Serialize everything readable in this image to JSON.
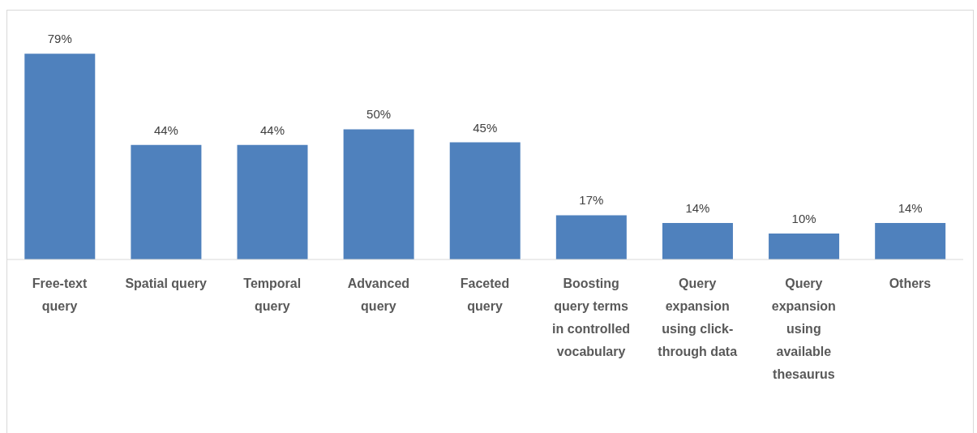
{
  "chart_data": {
    "type": "bar",
    "categories": [
      "Free-text query",
      "Spatial query",
      "Temporal query",
      "Advanced query",
      "Faceted query",
      "Boosting query terms in controlled vocabulary",
      "Query expansion using click-through data",
      "Query expansion using available thesaurus",
      "Others"
    ],
    "values": [
      79,
      44,
      44,
      50,
      45,
      17,
      14,
      10,
      14
    ],
    "value_labels": [
      "79%",
      "44%",
      "44%",
      "50%",
      "45%",
      "17%",
      "14%",
      "10%",
      "14%"
    ],
    "color": "#4f81bd",
    "tick_labels": "x"
  }
}
